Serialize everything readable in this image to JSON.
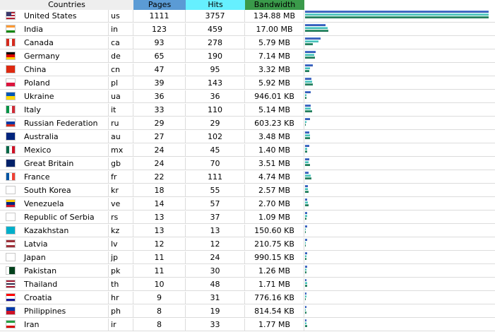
{
  "header": {
    "countries": "Countries",
    "pages": "Pages",
    "hits": "Hits",
    "bandwidth": "Bandwidth"
  },
  "colors": {
    "pages_header": "#5b9bd5",
    "hits_header": "#66f0ff",
    "bandwidth_header": "#3a9a4a",
    "header_bg": "#eeeeee"
  },
  "rows": [
    {
      "country": "United States",
      "code": "us",
      "pages": "1111",
      "hits": "3757",
      "bandwidth": "134.88 MB",
      "bw_kb": 138117,
      "flag": [
        "us"
      ]
    },
    {
      "country": "India",
      "code": "in",
      "pages": "123",
      "hits": "459",
      "bandwidth": "17.00 MB",
      "bw_kb": 17408,
      "flag": [
        "h",
        "#ff9933",
        "#ffffff",
        "#138808"
      ]
    },
    {
      "country": "Canada",
      "code": "ca",
      "pages": "93",
      "hits": "278",
      "bandwidth": "5.79 MB",
      "bw_kb": 5929,
      "flag": [
        "v",
        "#d52b1e",
        "#ffffff",
        "#d52b1e"
      ]
    },
    {
      "country": "Germany",
      "code": "de",
      "pages": "65",
      "hits": "190",
      "bandwidth": "7.14 MB",
      "bw_kb": 7311,
      "flag": [
        "h",
        "#000000",
        "#dd0000",
        "#ffce00"
      ]
    },
    {
      "country": "China",
      "code": "cn",
      "pages": "47",
      "hits": "95",
      "bandwidth": "3.32 MB",
      "bw_kb": 3400,
      "flag": [
        "h",
        "#de2910"
      ]
    },
    {
      "country": "Poland",
      "code": "pl",
      "pages": "39",
      "hits": "143",
      "bandwidth": "5.92 MB",
      "bw_kb": 6062,
      "flag": [
        "h",
        "#ffffff",
        "#dc143c"
      ]
    },
    {
      "country": "Ukraine",
      "code": "ua",
      "pages": "36",
      "hits": "36",
      "bandwidth": "946.01 KB",
      "bw_kb": 946,
      "flag": [
        "h",
        "#0057b7",
        "#ffd700"
      ]
    },
    {
      "country": "Italy",
      "code": "it",
      "pages": "33",
      "hits": "110",
      "bandwidth": "5.14 MB",
      "bw_kb": 5263,
      "flag": [
        "v",
        "#009246",
        "#ffffff",
        "#ce2b37"
      ]
    },
    {
      "country": "Russian Federation",
      "code": "ru",
      "pages": "29",
      "hits": "29",
      "bandwidth": "603.23 KB",
      "bw_kb": 603,
      "flag": [
        "h",
        "#ffffff",
        "#0039a6",
        "#d52b1e"
      ]
    },
    {
      "country": "Australia",
      "code": "au",
      "pages": "27",
      "hits": "102",
      "bandwidth": "3.48 MB",
      "bw_kb": 3564,
      "flag": [
        "h",
        "#00247d"
      ]
    },
    {
      "country": "Mexico",
      "code": "mx",
      "pages": "24",
      "hits": "45",
      "bandwidth": "1.40 MB",
      "bw_kb": 1434,
      "flag": [
        "v",
        "#006847",
        "#ffffff",
        "#ce1126"
      ]
    },
    {
      "country": "Great Britain",
      "code": "gb",
      "pages": "24",
      "hits": "70",
      "bandwidth": "3.51 MB",
      "bw_kb": 3594,
      "flag": [
        "h",
        "#012169"
      ]
    },
    {
      "country": "France",
      "code": "fr",
      "pages": "22",
      "hits": "111",
      "bandwidth": "4.74 MB",
      "bw_kb": 4854,
      "flag": [
        "v",
        "#0055a4",
        "#ffffff",
        "#ef4135"
      ]
    },
    {
      "country": "South Korea",
      "code": "kr",
      "pages": "18",
      "hits": "55",
      "bandwidth": "2.57 MB",
      "bw_kb": 2632,
      "flag": [
        "h",
        "#ffffff"
      ]
    },
    {
      "country": "Venezuela",
      "code": "ve",
      "pages": "14",
      "hits": "57",
      "bandwidth": "2.70 MB",
      "bw_kb": 2765,
      "flag": [
        "h",
        "#ffcc00",
        "#00247d",
        "#cf142b"
      ]
    },
    {
      "country": "Republic of Serbia",
      "code": "rs",
      "pages": "13",
      "hits": "37",
      "bandwidth": "1.09 MB",
      "bw_kb": 1116,
      "flag": [
        "h",
        "#ffffff"
      ]
    },
    {
      "country": "Kazakhstan",
      "code": "kz",
      "pages": "13",
      "hits": "13",
      "bandwidth": "150.60 KB",
      "bw_kb": 151,
      "flag": [
        "h",
        "#00afca"
      ]
    },
    {
      "country": "Latvia",
      "code": "lv",
      "pages": "12",
      "hits": "12",
      "bandwidth": "210.75 KB",
      "bw_kb": 211,
      "flag": [
        "h",
        "#9e3039",
        "#ffffff",
        "#9e3039"
      ]
    },
    {
      "country": "Japan",
      "code": "jp",
      "pages": "11",
      "hits": "24",
      "bandwidth": "990.15 KB",
      "bw_kb": 990,
      "flag": [
        "h",
        "#ffffff"
      ]
    },
    {
      "country": "Pakistan",
      "code": "pk",
      "pages": "11",
      "hits": "30",
      "bandwidth": "1.26 MB",
      "bw_kb": 1290,
      "flag": [
        "v",
        "#ffffff",
        "#01411c",
        "#01411c"
      ]
    },
    {
      "country": "Thailand",
      "code": "th",
      "pages": "10",
      "hits": "48",
      "bandwidth": "1.71 MB",
      "bw_kb": 1751,
      "flag": [
        "h",
        "#a51931",
        "#ffffff",
        "#2d2a4a",
        "#ffffff",
        "#a51931"
      ]
    },
    {
      "country": "Croatia",
      "code": "hr",
      "pages": "9",
      "hits": "31",
      "bandwidth": "776.16 KB",
      "bw_kb": 776,
      "flag": [
        "h",
        "#ff0000",
        "#ffffff",
        "#171796"
      ]
    },
    {
      "country": "Philippines",
      "code": "ph",
      "pages": "8",
      "hits": "19",
      "bandwidth": "814.54 KB",
      "bw_kb": 815,
      "flag": [
        "h",
        "#0038a8",
        "#ce1126"
      ]
    },
    {
      "country": "Iran",
      "code": "ir",
      "pages": "8",
      "hits": "33",
      "bandwidth": "1.77 MB",
      "bw_kb": 1812,
      "flag": [
        "h",
        "#239f40",
        "#ffffff",
        "#da0000"
      ]
    }
  ]
}
